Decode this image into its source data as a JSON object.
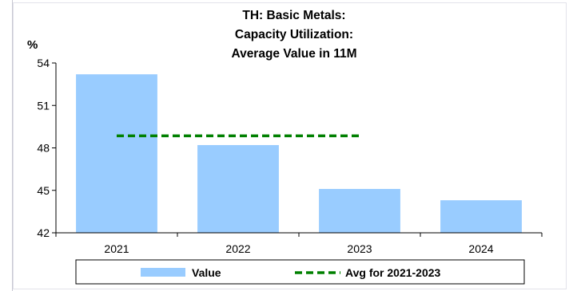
{
  "chart_data": {
    "type": "bar",
    "title_lines": [
      "TH: Basic Metals:",
      "Capacity Utilization:",
      "Average Value in 11M"
    ],
    "ylabel": "%",
    "xlabel": "",
    "categories": [
      "2021",
      "2022",
      "2023",
      "2024"
    ],
    "series": [
      {
        "name": "Value",
        "type": "bar",
        "color": "#99ccff",
        "values": [
          53.2,
          48.2,
          45.1,
          44.3
        ]
      },
      {
        "name": "Avg for 2021-2023",
        "type": "line",
        "style": "dashed",
        "color": "#008000",
        "value": 48.85,
        "span": [
          "2021",
          "2023"
        ]
      }
    ],
    "ylim": [
      42,
      54
    ],
    "yticks": [
      "42",
      "45",
      "48",
      "51",
      "54"
    ],
    "grid": false,
    "legend_placement": "bottom"
  }
}
